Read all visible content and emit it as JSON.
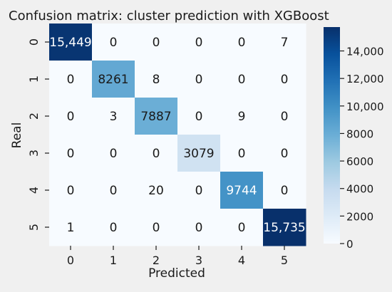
{
  "chart_data": {
    "type": "heatmap",
    "title": "Confusion matrix: cluster prediction with XGBoost",
    "xlabel": "Predicted",
    "ylabel": "Real",
    "x_categories": [
      "0",
      "1",
      "2",
      "3",
      "4",
      "5"
    ],
    "y_categories": [
      "0",
      "1",
      "2",
      "3",
      "4",
      "5"
    ],
    "values": [
      [
        15449,
        0,
        0,
        0,
        0,
        7
      ],
      [
        0,
        8261,
        8,
        0,
        0,
        0
      ],
      [
        0,
        3,
        7887,
        0,
        9,
        0
      ],
      [
        0,
        0,
        0,
        3079,
        0,
        0
      ],
      [
        0,
        0,
        20,
        0,
        9744,
        0
      ],
      [
        1,
        0,
        0,
        0,
        0,
        15735
      ]
    ],
    "cell_labels": [
      [
        "15,449",
        "0",
        "0",
        "0",
        "0",
        "7"
      ],
      [
        "0",
        "8261",
        "8",
        "0",
        "0",
        "0"
      ],
      [
        "0",
        "3",
        "7887",
        "0",
        "9",
        "0"
      ],
      [
        "0",
        "0",
        "0",
        "3079",
        "0",
        "0"
      ],
      [
        "0",
        "0",
        "20",
        "0",
        "9744",
        "0"
      ],
      [
        "1",
        "0",
        "0",
        "0",
        "0",
        "15,735"
      ]
    ],
    "colormap": "Blues",
    "color_range": [
      0,
      15735
    ],
    "colorbar_ticks": [
      0,
      2000,
      4000,
      6000,
      8000,
      10000,
      12000,
      14000
    ],
    "colorbar_tick_labels": [
      "0",
      "2000",
      "4000",
      "6000",
      "8000",
      "10,000",
      "12,000",
      "14,000"
    ],
    "grid": false,
    "legend": "colorbar-right"
  }
}
